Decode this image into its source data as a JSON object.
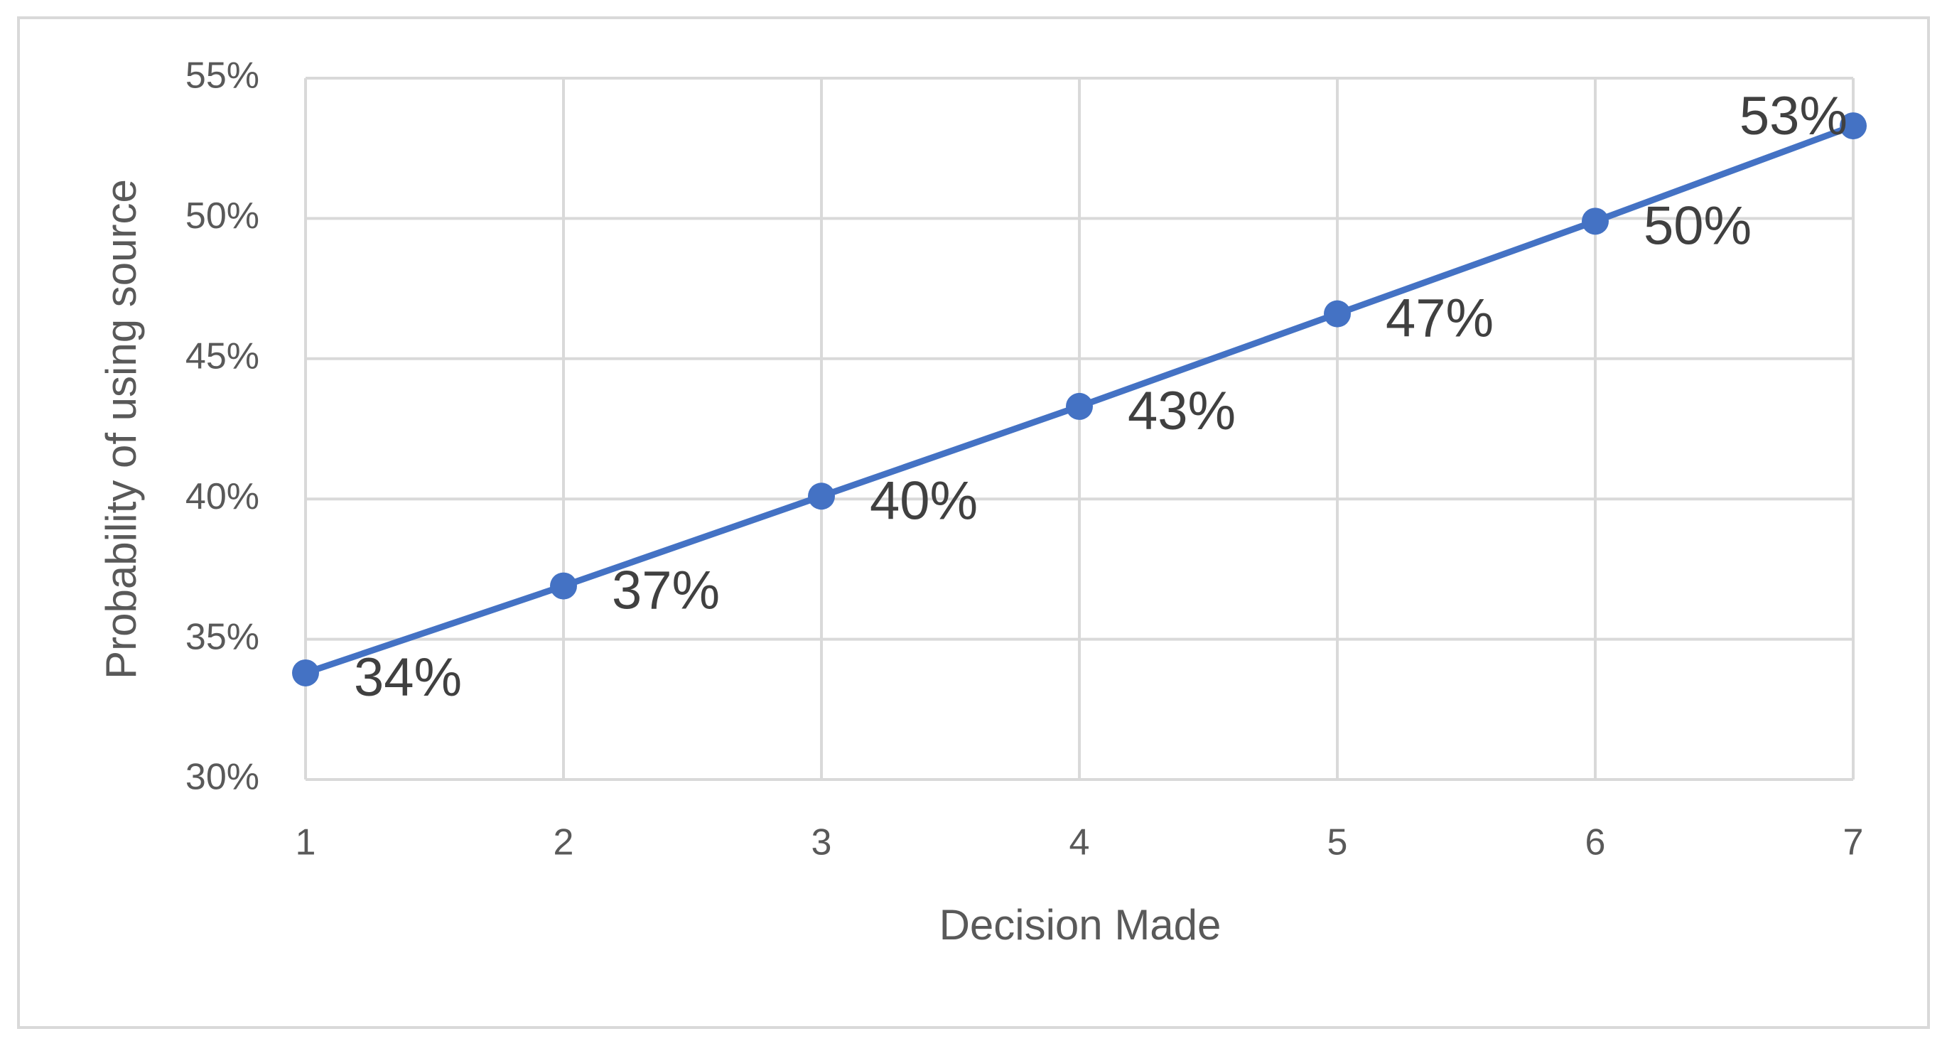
{
  "chart_data": {
    "type": "line",
    "x_label": "Decision Made",
    "y_label": "Probability of using source",
    "x": [
      1,
      2,
      3,
      4,
      5,
      6,
      7
    ],
    "series": [
      {
        "name": "Probability of using source",
        "color": "#4472c4",
        "values": [
          33.8,
          36.9,
          40.1,
          43.3,
          46.6,
          49.9,
          53.3
        ],
        "value_labels": [
          "34%",
          "37%",
          "40%",
          "43%",
          "47%",
          "50%",
          "53%"
        ]
      }
    ],
    "xlim": [
      1,
      7
    ],
    "xticks": [
      1,
      2,
      3,
      4,
      5,
      6,
      7
    ],
    "ylim": [
      30,
      55
    ],
    "yticks": [
      {
        "value": 30,
        "label": "30%"
      },
      {
        "value": 35,
        "label": "35%"
      },
      {
        "value": 40,
        "label": "40%"
      },
      {
        "value": 45,
        "label": "45%"
      },
      {
        "value": 50,
        "label": "50%"
      },
      {
        "value": 55,
        "label": "55%"
      }
    ],
    "grid": true
  }
}
